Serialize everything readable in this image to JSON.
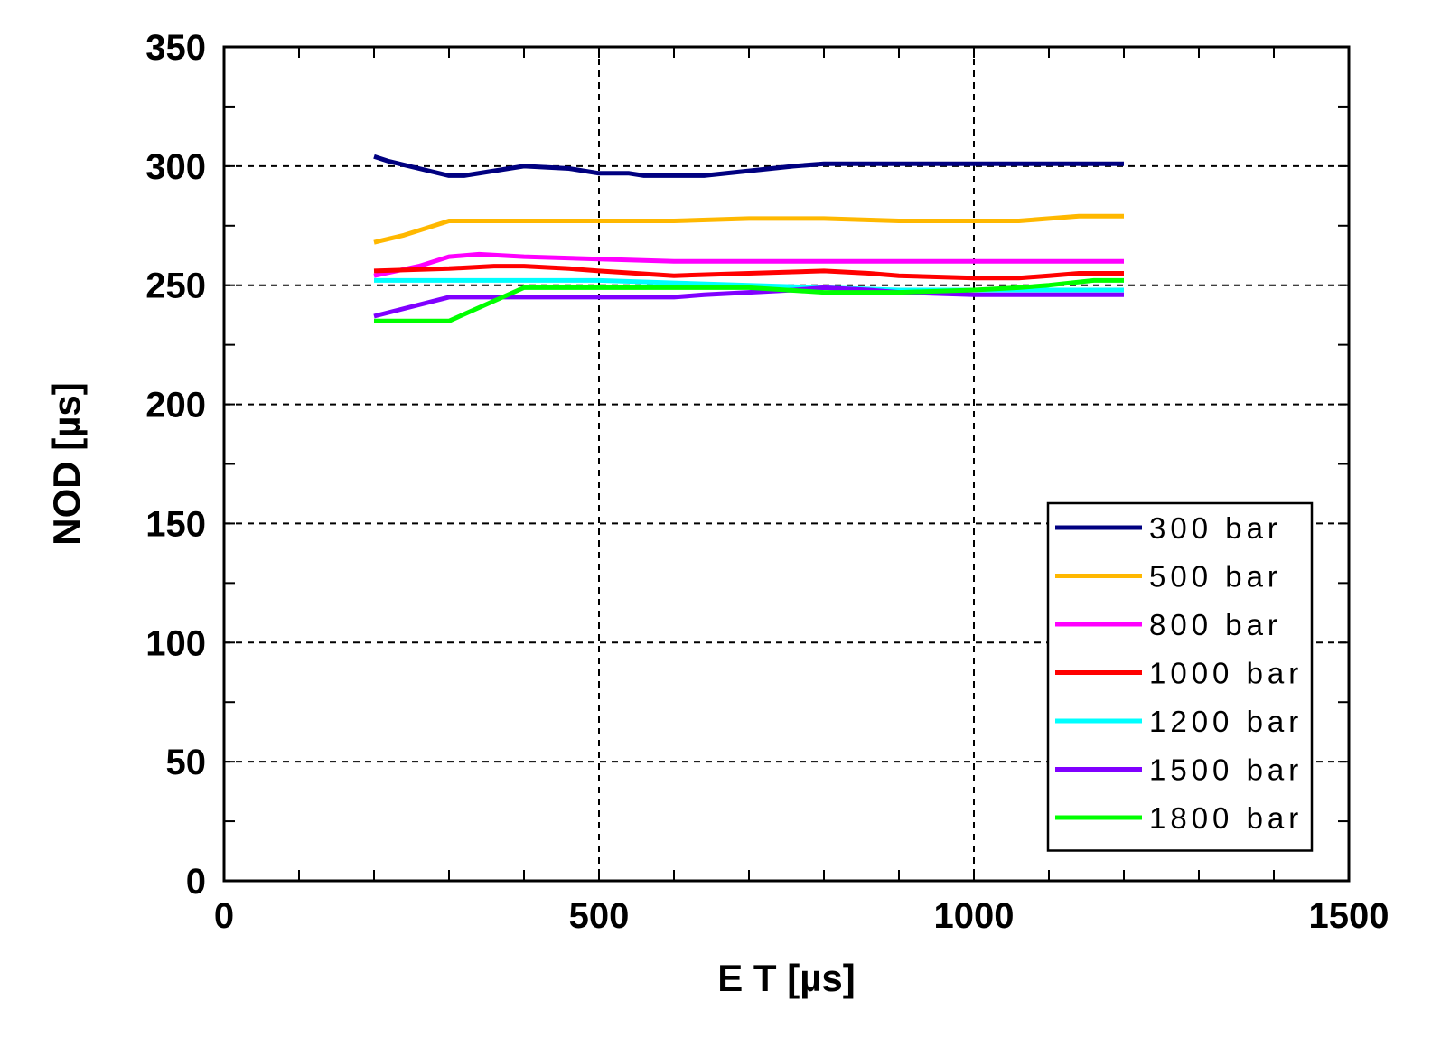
{
  "chart_data": {
    "type": "line",
    "xlabel": "E T [µs]",
    "ylabel": "NOD [µs]",
    "xlim": [
      0,
      1500
    ],
    "ylim": [
      0,
      350
    ],
    "xticks": [
      0,
      500,
      1000,
      1500
    ],
    "yticks": [
      0,
      50,
      100,
      150,
      200,
      250,
      300,
      350
    ],
    "grid": true,
    "legend_position": "bottom-right",
    "series": [
      {
        "name": "300 bar",
        "color": "#000080",
        "x": [
          200,
          220,
          260,
          300,
          320,
          360,
          400,
          460,
          500,
          540,
          560,
          600,
          640,
          700,
          760,
          800,
          900,
          1000,
          1100,
          1200
        ],
        "y": [
          304,
          302,
          299,
          296,
          296,
          298,
          300,
          299,
          297,
          297,
          296,
          296,
          296,
          298,
          300,
          301,
          301,
          301,
          301,
          301
        ]
      },
      {
        "name": "500 bar",
        "color": "#FFB800",
        "x": [
          200,
          240,
          300,
          400,
          500,
          600,
          700,
          800,
          900,
          1000,
          1060,
          1100,
          1140,
          1200
        ],
        "y": [
          268,
          271,
          277,
          277,
          277,
          277,
          278,
          278,
          277,
          277,
          277,
          278,
          279,
          279
        ]
      },
      {
        "name": "800 bar",
        "color": "#FF00FF",
        "x": [
          200,
          260,
          300,
          340,
          400,
          500,
          600,
          800,
          1000,
          1200
        ],
        "y": [
          254,
          258,
          262,
          263,
          262,
          261,
          260,
          260,
          260,
          260
        ]
      },
      {
        "name": "1000 bar",
        "color": "#FF0000",
        "x": [
          200,
          300,
          360,
          400,
          460,
          500,
          600,
          700,
          800,
          860,
          900,
          1000,
          1060,
          1100,
          1140,
          1200
        ],
        "y": [
          256,
          257,
          258,
          258,
          257,
          256,
          254,
          255,
          256,
          255,
          254,
          253,
          253,
          254,
          255,
          255
        ]
      },
      {
        "name": "1200 bar",
        "color": "#00FFFF",
        "x": [
          200,
          300,
          400,
          500,
          600,
          700,
          800,
          900,
          1000,
          1100,
          1200
        ],
        "y": [
          252,
          252,
          252,
          252,
          251,
          250,
          249,
          248,
          248,
          248,
          248
        ]
      },
      {
        "name": "1500 bar",
        "color": "#8000FF",
        "x": [
          200,
          300,
          400,
          500,
          600,
          640,
          700,
          760,
          800,
          860,
          900,
          1000,
          1100,
          1200
        ],
        "y": [
          237,
          245,
          245,
          245,
          245,
          246,
          247,
          248,
          249,
          248,
          247,
          246,
          246,
          246
        ]
      },
      {
        "name": "1800 bar",
        "color": "#00FF00",
        "x": [
          200,
          300,
          400,
          500,
          600,
          700,
          800,
          900,
          1000,
          1060,
          1100,
          1160,
          1200
        ],
        "y": [
          235,
          235,
          249,
          249,
          249,
          249,
          247,
          247,
          248,
          249,
          250,
          252,
          252
        ]
      }
    ]
  }
}
